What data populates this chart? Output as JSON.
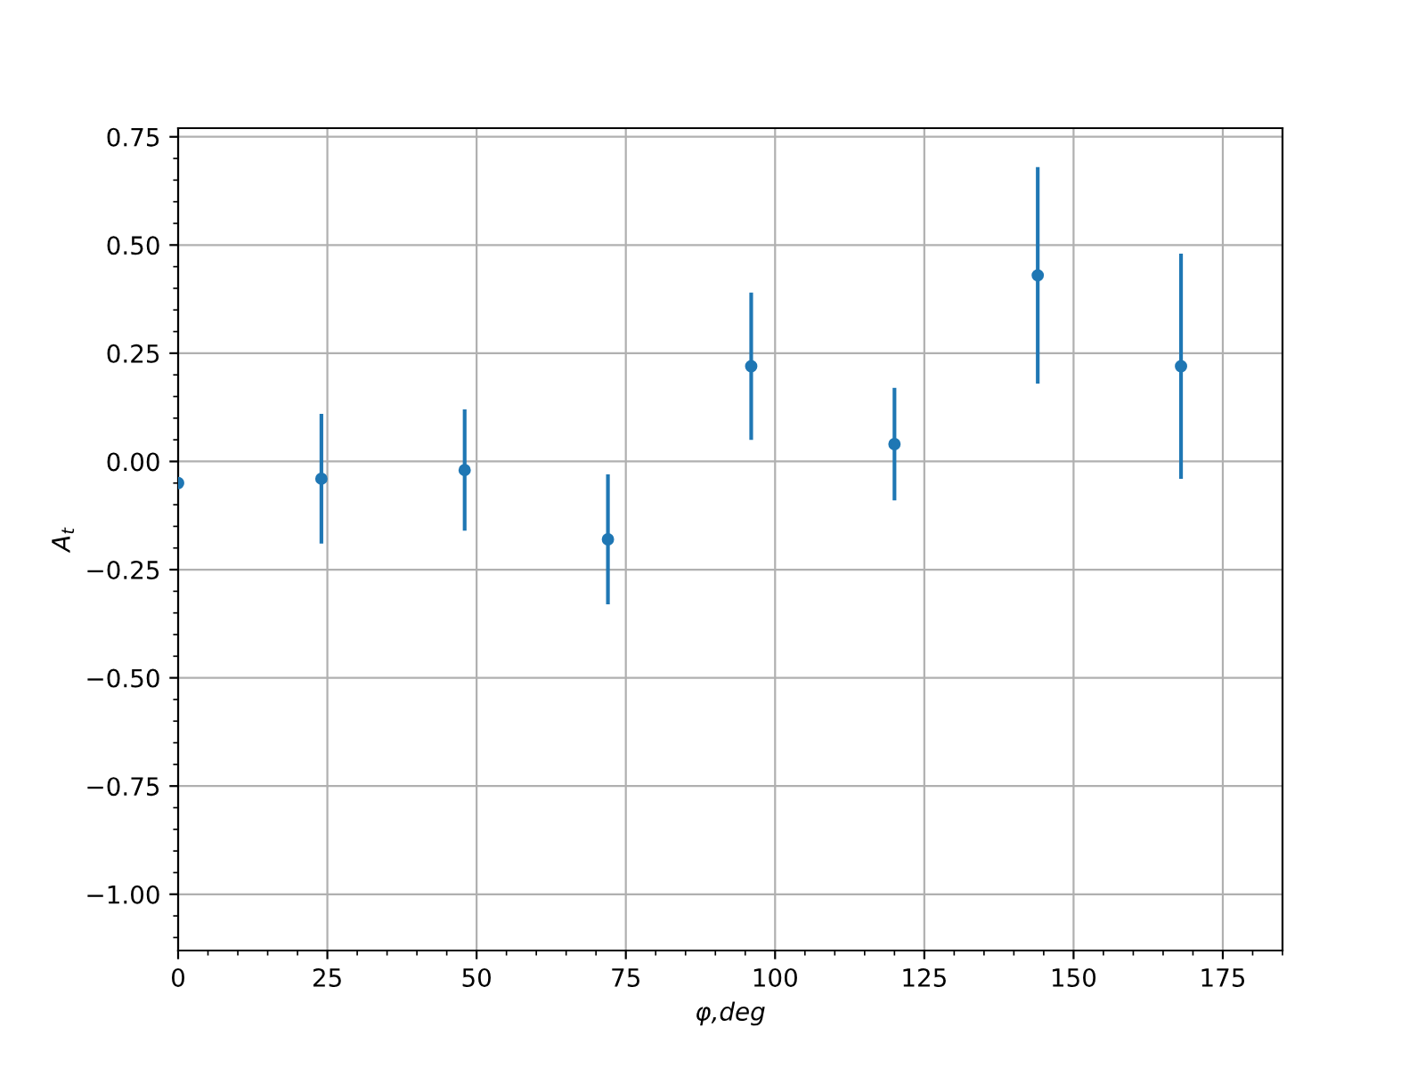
{
  "chart_data": {
    "type": "scatter",
    "xlabel": "φ,deg",
    "ylabel": "A$_{t}$",
    "x": [
      0,
      24,
      48,
      72,
      96,
      120,
      144,
      168
    ],
    "series": [
      {
        "color": "#1f77b4",
        "values": [
          -0.05,
          -0.04,
          -0.02,
          -0.18,
          0.22,
          0.04,
          0.43,
          0.22
        ],
        "errors": [
          null,
          0.15,
          0.14,
          0.15,
          0.17,
          0.13,
          0.25,
          0.26
        ]
      }
    ],
    "marker": "circle",
    "grid": true,
    "xlim": [
      0,
      185
    ],
    "xticks": [
      0,
      25,
      50,
      75,
      100,
      125,
      150,
      175
    ],
    "ylim": [
      -1.13,
      0.77
    ],
    "yticks": [
      {
        "value": -1.0,
        "label": "−1.00"
      },
      {
        "value": -0.75,
        "label": "−0.75"
      },
      {
        "value": -0.5,
        "label": "−0.50"
      },
      {
        "value": -0.25,
        "label": "−0.25"
      },
      {
        "value": 0,
        "label": "0.00"
      },
      {
        "value": 0.25,
        "label": "0.25"
      },
      {
        "value": 0.5,
        "label": "0.50"
      },
      {
        "value": 0.75,
        "label": "0.75"
      }
    ]
  }
}
